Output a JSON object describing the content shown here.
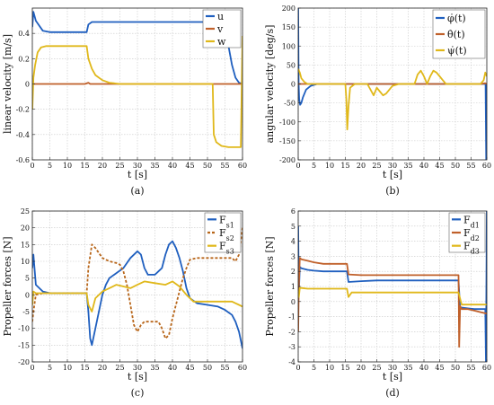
{
  "chart_data": [
    {
      "type": "line",
      "panel_label": "(a)",
      "xlabel": "t [s]",
      "ylabel": "linear velocity [m/s]",
      "xlim": [
        0,
        60
      ],
      "ylim": [
        -0.6,
        0.6
      ],
      "xticks": [
        0,
        5,
        10,
        15,
        20,
        25,
        30,
        35,
        40,
        45,
        50,
        55,
        60
      ],
      "yticks": [
        -0.6,
        -0.4,
        -0.2,
        0,
        0.2,
        0.4
      ],
      "grid": true,
      "legend": "top-right",
      "series": [
        {
          "name": "u",
          "color": "#1f5fbf",
          "dash": "",
          "x": [
            0,
            0.3,
            1,
            3,
            5,
            8,
            12,
            15.5,
            16,
            17,
            19,
            22,
            30,
            40,
            50,
            54,
            56,
            57,
            58,
            59,
            60
          ],
          "y": [
            0.45,
            0.57,
            0.5,
            0.42,
            0.41,
            0.41,
            0.41,
            0.41,
            0.47,
            0.49,
            0.49,
            0.49,
            0.49,
            0.49,
            0.49,
            0.47,
            0.3,
            0.15,
            0.05,
            0.01,
            0.0
          ]
        },
        {
          "name": "v",
          "color": "#c0602a",
          "dash": "",
          "x": [
            0,
            5,
            10,
            15,
            16,
            16.5,
            20,
            30,
            40,
            50,
            60
          ],
          "y": [
            0.0,
            0.0,
            0.0,
            0.0,
            0.01,
            0.0,
            0.0,
            0.0,
            0.0,
            0.0,
            0.0
          ]
        },
        {
          "name": "w",
          "color": "#e0b81a",
          "dash": "",
          "x": [
            0,
            0.3,
            0.8,
            1.5,
            2.5,
            4,
            6,
            8,
            10,
            12,
            14,
            15.5,
            16,
            17,
            18,
            20,
            22,
            25,
            30,
            40,
            50,
            51.5,
            51.8,
            52.5,
            54,
            56,
            58,
            59.5,
            59.8,
            60
          ],
          "y": [
            -0.2,
            0.05,
            0.15,
            0.25,
            0.29,
            0.3,
            0.3,
            0.3,
            0.3,
            0.3,
            0.3,
            0.3,
            0.2,
            0.12,
            0.07,
            0.03,
            0.01,
            0.0,
            0.0,
            0.0,
            0.0,
            0.0,
            -0.4,
            -0.46,
            -0.49,
            -0.5,
            -0.5,
            -0.5,
            0.0,
            0.38
          ]
        }
      ]
    },
    {
      "type": "line",
      "panel_label": "(b)",
      "xlabel": "t [s]",
      "ylabel": "angular velocity [deg/s]",
      "xlim": [
        0,
        60
      ],
      "ylim": [
        -200,
        200
      ],
      "xticks": [
        0,
        5,
        10,
        15,
        20,
        25,
        30,
        35,
        40,
        45,
        50,
        55,
        60
      ],
      "yticks": [
        -200,
        -150,
        -100,
        -50,
        0,
        50,
        100,
        150,
        200
      ],
      "grid": true,
      "legend": "top-right",
      "series": [
        {
          "name": "φ̇(t)",
          "color": "#1f5fbf",
          "dash": "",
          "x": [
            0,
            0.15,
            0.3,
            0.6,
            1,
            1.5,
            2.5,
            4,
            6,
            10,
            20,
            30,
            40,
            50,
            59.6,
            59.8,
            60
          ],
          "y": [
            200,
            0,
            -40,
            -55,
            -50,
            -35,
            -15,
            -5,
            0,
            0,
            0,
            0,
            0,
            0,
            0,
            -200,
            0
          ]
        },
        {
          "name": "θ̇(t)",
          "color": "#c0602a",
          "dash": "",
          "x": [
            0,
            5,
            10,
            15,
            20,
            30,
            40,
            50,
            55,
            58,
            59.5,
            60
          ],
          "y": [
            0,
            0,
            0,
            0,
            0,
            0,
            0,
            0,
            0,
            0,
            2,
            0
          ]
        },
        {
          "name": "ψ̇(t)",
          "color": "#e0b81a",
          "dash": "",
          "x": [
            0,
            0.5,
            1,
            2,
            3,
            4,
            5,
            8,
            12,
            15,
            15.3,
            15.6,
            16,
            16.5,
            18,
            20,
            22,
            23,
            24,
            25,
            26,
            27,
            28,
            29,
            30,
            32,
            35,
            37,
            38,
            39,
            40,
            41,
            42,
            43,
            44,
            45,
            46,
            47,
            50,
            55,
            58,
            59,
            59.5,
            60
          ],
          "y": [
            40,
            30,
            15,
            5,
            0,
            0,
            0,
            0,
            0,
            0,
            -40,
            -120,
            -60,
            -10,
            0,
            0,
            0,
            -15,
            -30,
            -10,
            -20,
            -30,
            -25,
            -15,
            -5,
            0,
            0,
            0,
            25,
            35,
            20,
            0,
            20,
            35,
            30,
            20,
            10,
            0,
            0,
            0,
            0,
            10,
            30,
            20
          ]
        }
      ]
    },
    {
      "type": "line",
      "panel_label": "(c)",
      "xlabel": "t [s]",
      "ylabel": "Propeller forces [N]",
      "xlim": [
        0,
        60
      ],
      "ylim": [
        -20,
        25
      ],
      "xticks": [
        0,
        5,
        10,
        15,
        20,
        25,
        30,
        35,
        40,
        45,
        50,
        55,
        60
      ],
      "yticks": [
        -20,
        -15,
        -10,
        -5,
        0,
        5,
        10,
        15,
        20,
        25
      ],
      "grid": true,
      "legend": "top-right",
      "series": [
        {
          "name": "F",
          "sub": "s1",
          "color": "#1f5fbf",
          "dash": "",
          "x": [
            0,
            0.3,
            1,
            3,
            5,
            8,
            12,
            15.5,
            16,
            16.5,
            17,
            18,
            19,
            20,
            21,
            22,
            24,
            26,
            28,
            30,
            31,
            32,
            33,
            34,
            35,
            36,
            37,
            38,
            39,
            40,
            41,
            42,
            43,
            44,
            45,
            47,
            50,
            53,
            55,
            57,
            58,
            59,
            60
          ],
          "y": [
            8,
            12,
            3,
            1,
            0.5,
            0.5,
            0.5,
            0.5,
            -5,
            -13,
            -15,
            -10,
            -5,
            0,
            3,
            5,
            6.5,
            8,
            11,
            13,
            12,
            8,
            6,
            6,
            6,
            7,
            8,
            12,
            15,
            16,
            14,
            11,
            7,
            2,
            -1,
            -2.5,
            -3,
            -3.5,
            -4.5,
            -6,
            -8,
            -11,
            -16
          ]
        },
        {
          "name": "F",
          "sub": "s2",
          "color": "#b8661a",
          "dash": "3,2",
          "x": [
            0,
            0.3,
            1,
            3,
            5,
            8,
            12,
            15.5,
            16,
            17,
            18,
            20,
            22,
            24,
            25,
            26,
            27,
            28,
            29,
            30,
            31,
            32,
            33,
            34,
            35,
            36,
            37,
            38,
            39,
            40,
            41,
            42,
            43,
            44,
            45,
            47,
            50,
            53,
            55,
            57,
            58,
            59,
            60
          ],
          "y": [
            -8,
            -5,
            0,
            0.5,
            0.5,
            0.5,
            0.5,
            0.5,
            8,
            15,
            14,
            11,
            10,
            9.5,
            9,
            7,
            3,
            -3,
            -9,
            -11,
            -9,
            -8,
            -8,
            -8,
            -8,
            -8,
            -10,
            -13,
            -12,
            -7,
            -3,
            1,
            5,
            8,
            10.5,
            11,
            11,
            11,
            11,
            11,
            10,
            12,
            20
          ]
        },
        {
          "name": "F",
          "sub": "s3",
          "color": "#e0b81a",
          "dash": "",
          "x": [
            0,
            0.3,
            1,
            3,
            5,
            8,
            12,
            15.5,
            16,
            17,
            18,
            20,
            22,
            24,
            26,
            28,
            30,
            32,
            35,
            38,
            40,
            42,
            44,
            46,
            48,
            50,
            52,
            55,
            57,
            58,
            59,
            60
          ],
          "y": [
            -3,
            1,
            0.5,
            0.5,
            0.5,
            0.5,
            0.5,
            0.5,
            -3,
            -5,
            -1,
            1,
            2,
            3,
            2.5,
            2,
            3,
            4,
            3.5,
            3,
            4,
            2.5,
            0,
            -2,
            -2,
            -2,
            -2,
            -2,
            -2,
            -2.5,
            -3,
            -3.5
          ]
        }
      ]
    },
    {
      "type": "line",
      "panel_label": "(d)",
      "xlabel": "t [s]",
      "ylabel": "Propeller forces [N]",
      "xlim": [
        0,
        60
      ],
      "ylim": [
        -4,
        6
      ],
      "xticks": [
        0,
        5,
        10,
        15,
        20,
        25,
        30,
        35,
        40,
        45,
        50,
        55,
        60
      ],
      "yticks": [
        -4,
        -3,
        -2,
        -1,
        0,
        1,
        2,
        3,
        4,
        5,
        6
      ],
      "grid": true,
      "legend": "top-right",
      "series": [
        {
          "name": "F",
          "sub": "d1",
          "color": "#1f5fbf",
          "dash": "",
          "x": [
            0,
            0.2,
            0.5,
            1,
            3,
            5,
            8,
            12,
            15.5,
            16,
            20,
            25,
            30,
            35,
            40,
            45,
            50,
            51,
            51.5,
            52,
            54,
            56,
            58,
            59.5,
            59.7,
            60
          ],
          "y": [
            5,
            0.5,
            2.3,
            2.2,
            2.1,
            2.05,
            2.0,
            2.0,
            2.0,
            1.3,
            1.35,
            1.4,
            1.4,
            1.4,
            1.4,
            1.4,
            1.4,
            1.4,
            -0.5,
            -0.4,
            -0.45,
            -0.5,
            -0.5,
            -0.5,
            -4,
            6
          ]
        },
        {
          "name": "F",
          "sub": "d2",
          "color": "#c0602a",
          "dash": "",
          "x": [
            0,
            0.2,
            0.5,
            1,
            3,
            5,
            8,
            12,
            15.5,
            16,
            20,
            25,
            30,
            35,
            40,
            45,
            50,
            51,
            51.2,
            51.5,
            52,
            54,
            56,
            58,
            60
          ],
          "y": [
            -2,
            1,
            2.9,
            2.8,
            2.7,
            2.6,
            2.5,
            2.5,
            2.5,
            1.8,
            1.75,
            1.75,
            1.75,
            1.75,
            1.75,
            1.75,
            1.75,
            1.75,
            -3,
            -0.3,
            -0.5,
            -0.5,
            -0.6,
            -0.7,
            -0.8
          ]
        },
        {
          "name": "F",
          "sub": "d3",
          "color": "#e0b81a",
          "dash": "",
          "x": [
            0,
            0.2,
            0.5,
            1,
            3,
            5,
            8,
            12,
            15.5,
            16,
            17,
            20,
            25,
            30,
            35,
            40,
            45,
            50,
            51,
            52,
            54,
            56,
            58,
            60
          ],
          "y": [
            0.5,
            0.3,
            0.9,
            0.9,
            0.85,
            0.85,
            0.85,
            0.85,
            0.85,
            0.3,
            0.6,
            0.6,
            0.6,
            0.6,
            0.6,
            0.6,
            0.6,
            0.6,
            0.6,
            -0.2,
            -0.2,
            -0.2,
            -0.2,
            -0.2
          ]
        }
      ]
    }
  ]
}
